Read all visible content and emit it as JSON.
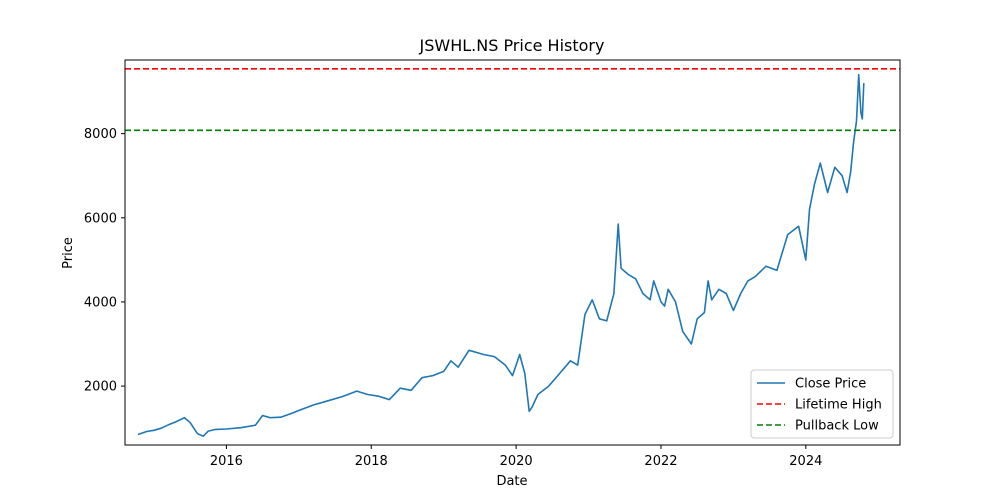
{
  "chart_data": {
    "type": "line",
    "title": "JSWHL.NS Price History",
    "xlabel": "Date",
    "ylabel": "Price",
    "xlim": [
      2014.6,
      2025.3
    ],
    "ylim": [
      600,
      9750
    ],
    "x_ticks": [
      2016,
      2018,
      2020,
      2022,
      2024
    ],
    "x_tick_labels": [
      "2016",
      "2018",
      "2020",
      "2022",
      "2024"
    ],
    "y_ticks": [
      2000,
      4000,
      6000,
      8000
    ],
    "y_tick_labels": [
      "2000",
      "4000",
      "6000",
      "8000"
    ],
    "grid": false,
    "legend_position": "lower-right",
    "series": [
      {
        "name": "Close Price",
        "color": "#1f77b4",
        "style": "solid",
        "x": [
          2014.78,
          2014.9,
          2015.0,
          2015.1,
          2015.2,
          2015.3,
          2015.42,
          2015.5,
          2015.6,
          2015.68,
          2015.75,
          2015.85,
          2016.0,
          2016.2,
          2016.4,
          2016.5,
          2016.6,
          2016.75,
          2016.9,
          2017.0,
          2017.2,
          2017.4,
          2017.6,
          2017.8,
          2017.95,
          2018.1,
          2018.25,
          2018.4,
          2018.55,
          2018.7,
          2018.85,
          2019.0,
          2019.1,
          2019.2,
          2019.35,
          2019.45,
          2019.55,
          2019.7,
          2019.85,
          2019.95,
          2020.05,
          2020.12,
          2020.18,
          2020.22,
          2020.3,
          2020.45,
          2020.6,
          2020.75,
          2020.85,
          2020.95,
          2021.05,
          2021.15,
          2021.25,
          2021.35,
          2021.41,
          2021.45,
          2021.55,
          2021.65,
          2021.75,
          2021.85,
          2021.9,
          2022.0,
          2022.05,
          2022.1,
          2022.2,
          2022.3,
          2022.42,
          2022.5,
          2022.6,
          2022.65,
          2022.7,
          2022.8,
          2022.9,
          2023.0,
          2023.1,
          2023.2,
          2023.3,
          2023.45,
          2023.6,
          2023.75,
          2023.9,
          2024.0,
          2024.05,
          2024.12,
          2024.2,
          2024.3,
          2024.4,
          2024.5,
          2024.57,
          2024.62,
          2024.66,
          2024.7,
          2024.73,
          2024.76,
          2024.78,
          2024.8
        ],
        "values": [
          850,
          920,
          950,
          1000,
          1080,
          1150,
          1250,
          1130,
          870,
          810,
          930,
          970,
          980,
          1010,
          1070,
          1300,
          1250,
          1260,
          1350,
          1420,
          1550,
          1650,
          1750,
          1880,
          1800,
          1760,
          1680,
          1950,
          1900,
          2200,
          2250,
          2350,
          2600,
          2450,
          2850,
          2800,
          2750,
          2700,
          2500,
          2250,
          2750,
          2300,
          1400,
          1500,
          1800,
          2000,
          2300,
          2600,
          2500,
          3700,
          4050,
          3600,
          3550,
          4200,
          5850,
          4800,
          4650,
          4550,
          4200,
          4050,
          4500,
          4000,
          3900,
          4300,
          4000,
          3300,
          3000,
          3600,
          3750,
          4500,
          4050,
          4300,
          4200,
          3800,
          4200,
          4500,
          4600,
          4850,
          4750,
          5600,
          5800,
          5000,
          6200,
          6800,
          7300,
          6600,
          7200,
          7000,
          6600,
          7100,
          7800,
          8300,
          9400,
          8500,
          8350,
          9200
        ]
      },
      {
        "name": "Lifetime High",
        "color": "#ff0000",
        "style": "dashed",
        "y": 9540
      },
      {
        "name": "Pullback Low",
        "color": "#008000",
        "style": "dashed",
        "y": 8080
      }
    ]
  }
}
